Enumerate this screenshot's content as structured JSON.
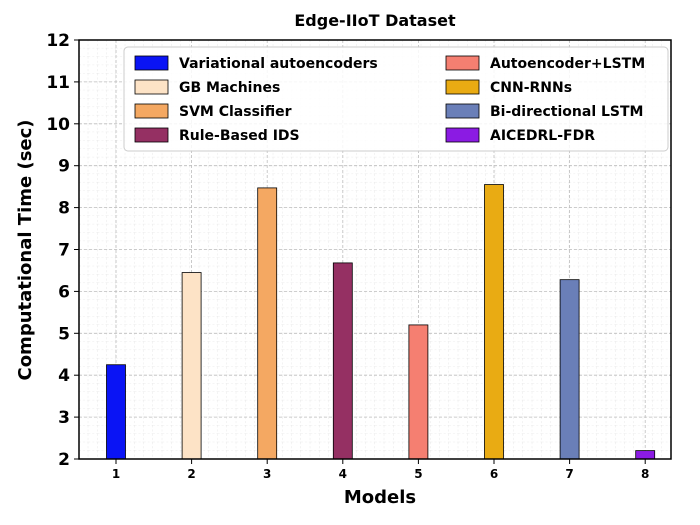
{
  "chart_data": {
    "type": "bar",
    "title": "Edge-IIoT Dataset",
    "xlabel": "Models",
    "ylabel": "Computational Time (sec)",
    "categories": [
      "1",
      "2",
      "3",
      "4",
      "5",
      "6",
      "7",
      "8"
    ],
    "ylim": [
      2,
      12
    ],
    "yticks": [
      2,
      3,
      4,
      5,
      6,
      7,
      8,
      9,
      10,
      11,
      12
    ],
    "grid": true,
    "legend_position": "top",
    "series": [
      {
        "name": "Variational autoencoders",
        "category": "1",
        "value": 4.25,
        "color": "#0a14f5"
      },
      {
        "name": "GB Machines",
        "category": "2",
        "value": 6.45,
        "color": "#fde3c6"
      },
      {
        "name": "SVM Classifier",
        "category": "3",
        "value": 8.47,
        "color": "#f4a862"
      },
      {
        "name": "Rule-Based IDS",
        "category": "4",
        "value": 6.68,
        "color": "#953063"
      },
      {
        "name": "Autoencoder+LSTM",
        "category": "5",
        "value": 5.2,
        "color": "#f57f71"
      },
      {
        "name": "CNN-RNNs",
        "category": "6",
        "value": 8.55,
        "color": "#e9ab13"
      },
      {
        "name": "Bi-directional LSTM",
        "category": "7",
        "value": 6.28,
        "color": "#6a7fb8"
      },
      {
        "name": "AICEDRL-FDR",
        "category": "8",
        "value": 2.2,
        "color": "#8b1be3"
      }
    ]
  }
}
